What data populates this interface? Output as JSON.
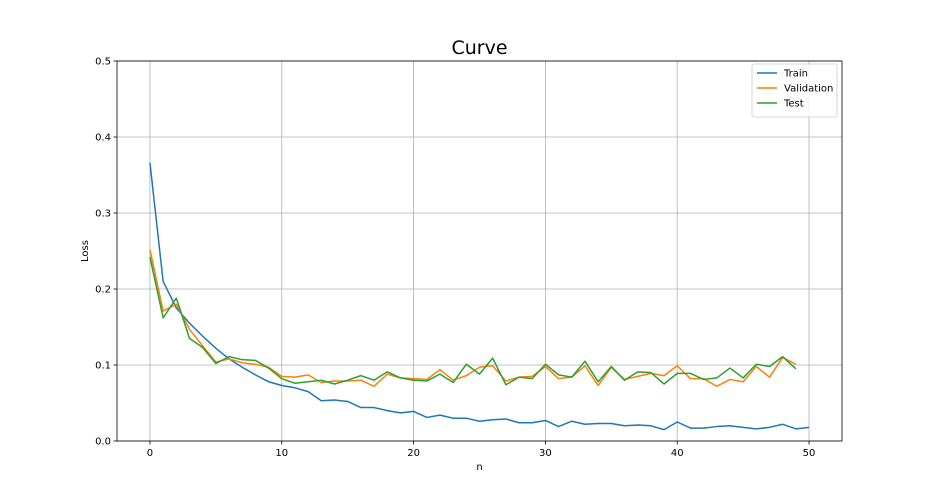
{
  "chart_data": {
    "type": "line",
    "title": "Curve",
    "xlabel": "n",
    "ylabel": "Loss",
    "xlim": [
      -2.5,
      52.5
    ],
    "ylim": [
      0,
      0.5
    ],
    "xticks": [
      0,
      10,
      20,
      30,
      40,
      50
    ],
    "yticks": [
      0.0,
      0.1,
      0.2,
      0.3,
      0.4,
      0.5
    ],
    "xtick_labels": [
      "0",
      "10",
      "20",
      "30",
      "40",
      "50"
    ],
    "ytick_labels": [
      "0.0",
      "0.1",
      "0.2",
      "0.3",
      "0.4",
      "0.5"
    ],
    "grid": true,
    "legend_position": "top-right",
    "series": [
      {
        "name": "Train",
        "color": "#1f77b4",
        "x": [
          0,
          1,
          2,
          3,
          4,
          5,
          6,
          7,
          8,
          9,
          10,
          11,
          12,
          13,
          14,
          15,
          16,
          17,
          18,
          19,
          20,
          21,
          22,
          23,
          24,
          25,
          26,
          27,
          28,
          29,
          30,
          31,
          32,
          33,
          34,
          35,
          36,
          37,
          38,
          39,
          40,
          41,
          42,
          43,
          44,
          45,
          46,
          47,
          48,
          49,
          50
        ],
        "values": [
          0.366,
          0.21,
          0.175,
          0.155,
          0.138,
          0.122,
          0.108,
          0.097,
          0.087,
          0.078,
          0.073,
          0.07,
          0.065,
          0.053,
          0.054,
          0.052,
          0.044,
          0.044,
          0.04,
          0.037,
          0.039,
          0.031,
          0.034,
          0.03,
          0.03,
          0.026,
          0.028,
          0.029,
          0.024,
          0.024,
          0.027,
          0.019,
          0.026,
          0.022,
          0.023,
          0.023,
          0.02,
          0.021,
          0.02,
          0.015,
          0.025,
          0.017,
          0.017,
          0.019,
          0.02,
          0.018,
          0.016,
          0.018,
          0.022,
          0.016,
          0.018
        ]
      },
      {
        "name": "Validation",
        "color": "#ff7f0e",
        "x": [
          0,
          1,
          2,
          3,
          4,
          5,
          6,
          7,
          8,
          9,
          10,
          11,
          12,
          13,
          14,
          15,
          16,
          17,
          18,
          19,
          20,
          21,
          22,
          23,
          24,
          25,
          26,
          27,
          28,
          29,
          30,
          31,
          32,
          33,
          34,
          35,
          36,
          37,
          38,
          39,
          40,
          41,
          42,
          43,
          44,
          45,
          46,
          47,
          48,
          49
        ],
        "values": [
          0.252,
          0.171,
          0.18,
          0.147,
          0.125,
          0.104,
          0.108,
          0.103,
          0.101,
          0.097,
          0.085,
          0.084,
          0.087,
          0.077,
          0.079,
          0.079,
          0.08,
          0.072,
          0.088,
          0.083,
          0.082,
          0.081,
          0.094,
          0.08,
          0.086,
          0.097,
          0.099,
          0.079,
          0.084,
          0.085,
          0.098,
          0.082,
          0.084,
          0.099,
          0.073,
          0.097,
          0.081,
          0.085,
          0.089,
          0.086,
          0.099,
          0.082,
          0.082,
          0.072,
          0.081,
          0.078,
          0.098,
          0.084,
          0.11,
          0.101
        ]
      },
      {
        "name": "Test",
        "color": "#2ca02c",
        "x": [
          0,
          1,
          2,
          3,
          4,
          5,
          6,
          7,
          8,
          9,
          10,
          11,
          12,
          13,
          14,
          15,
          16,
          17,
          18,
          19,
          20,
          21,
          22,
          23,
          24,
          25,
          26,
          27,
          28,
          29,
          30,
          31,
          32,
          33,
          34,
          35,
          36,
          37,
          38,
          39,
          40,
          41,
          42,
          43,
          44,
          45,
          46,
          47,
          48,
          49
        ],
        "values": [
          0.242,
          0.162,
          0.188,
          0.135,
          0.123,
          0.102,
          0.111,
          0.107,
          0.106,
          0.096,
          0.082,
          0.076,
          0.078,
          0.08,
          0.075,
          0.08,
          0.086,
          0.08,
          0.091,
          0.083,
          0.08,
          0.079,
          0.088,
          0.077,
          0.101,
          0.088,
          0.109,
          0.074,
          0.084,
          0.082,
          0.101,
          0.087,
          0.084,
          0.105,
          0.078,
          0.098,
          0.08,
          0.091,
          0.09,
          0.075,
          0.089,
          0.089,
          0.081,
          0.083,
          0.096,
          0.083,
          0.101,
          0.098,
          0.111,
          0.095
        ]
      }
    ]
  }
}
